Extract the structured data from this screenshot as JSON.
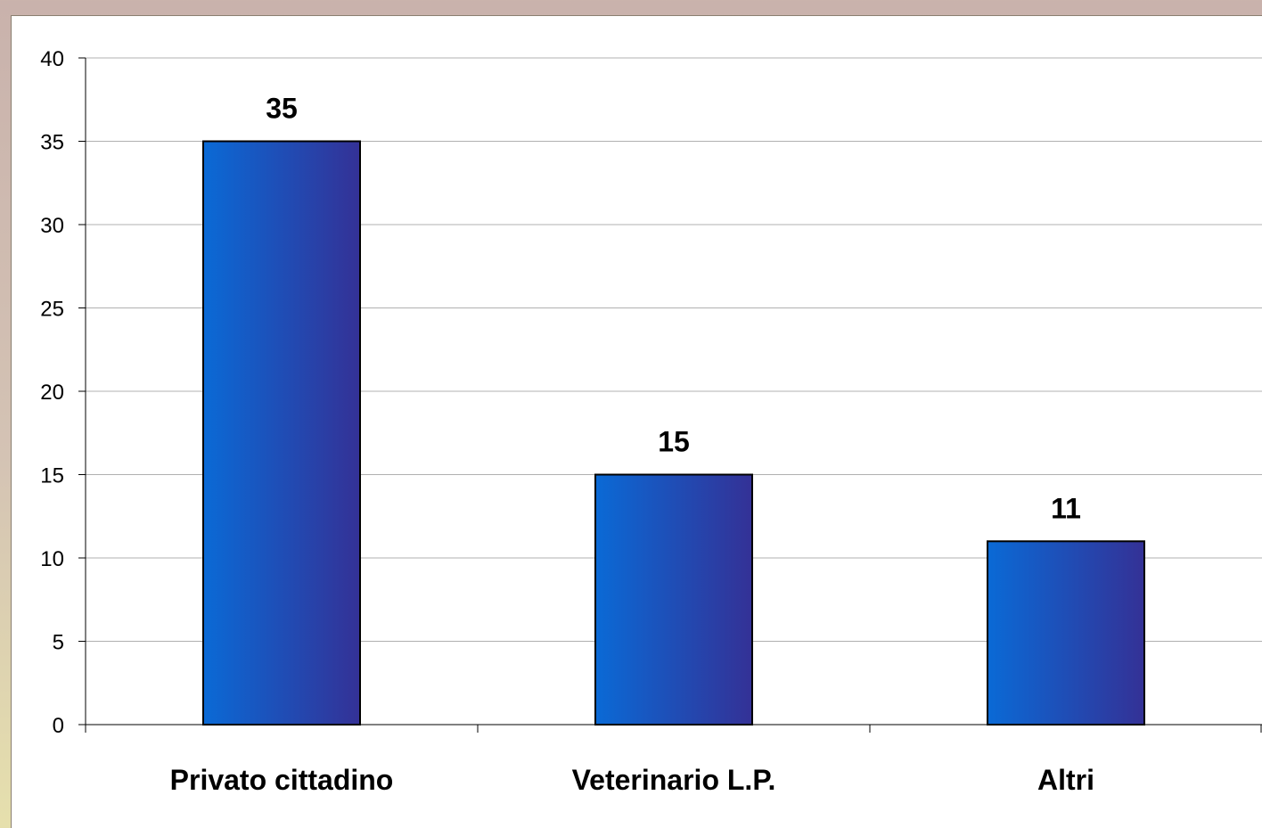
{
  "chart_data": {
    "type": "bar",
    "categories": [
      "Privato cittadino",
      "Veterinario L.P.",
      "Altri"
    ],
    "values": [
      35,
      15,
      11
    ],
    "data_labels": [
      "35",
      "15",
      "11"
    ],
    "title": "",
    "xlabel": "",
    "ylabel": "",
    "ylim": [
      0,
      40
    ],
    "yticks": [
      0,
      5,
      10,
      15,
      20,
      25,
      30,
      35,
      40
    ],
    "grid": true,
    "legend": "none",
    "colors": {
      "bar_left": "#0a6ad6",
      "bar_right": "#343196",
      "bar_border": "#000000",
      "gridline": "#b0b0b0",
      "background": "#ffffff"
    }
  }
}
